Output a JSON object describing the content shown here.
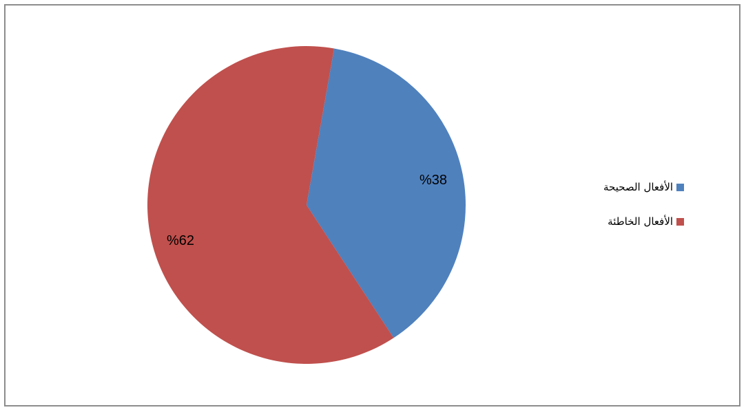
{
  "chart_data": {
    "type": "pie",
    "title": "",
    "categories": [
      "الأفعال الصحيحة",
      "الأفعال الخاطئة"
    ],
    "values": [
      38,
      62
    ],
    "value_labels": [
      "%38",
      "%62"
    ],
    "colors": [
      "#4f81bd",
      "#c0504d"
    ],
    "legend_position": "right",
    "start_angle_deg": 0,
    "direction": "clockwise"
  },
  "legend": {
    "items": [
      {
        "label": "الأفعال الصحيحة",
        "color": "#4f81bd"
      },
      {
        "label": "الأفعال الخاطئة",
        "color": "#c0504d"
      }
    ]
  }
}
